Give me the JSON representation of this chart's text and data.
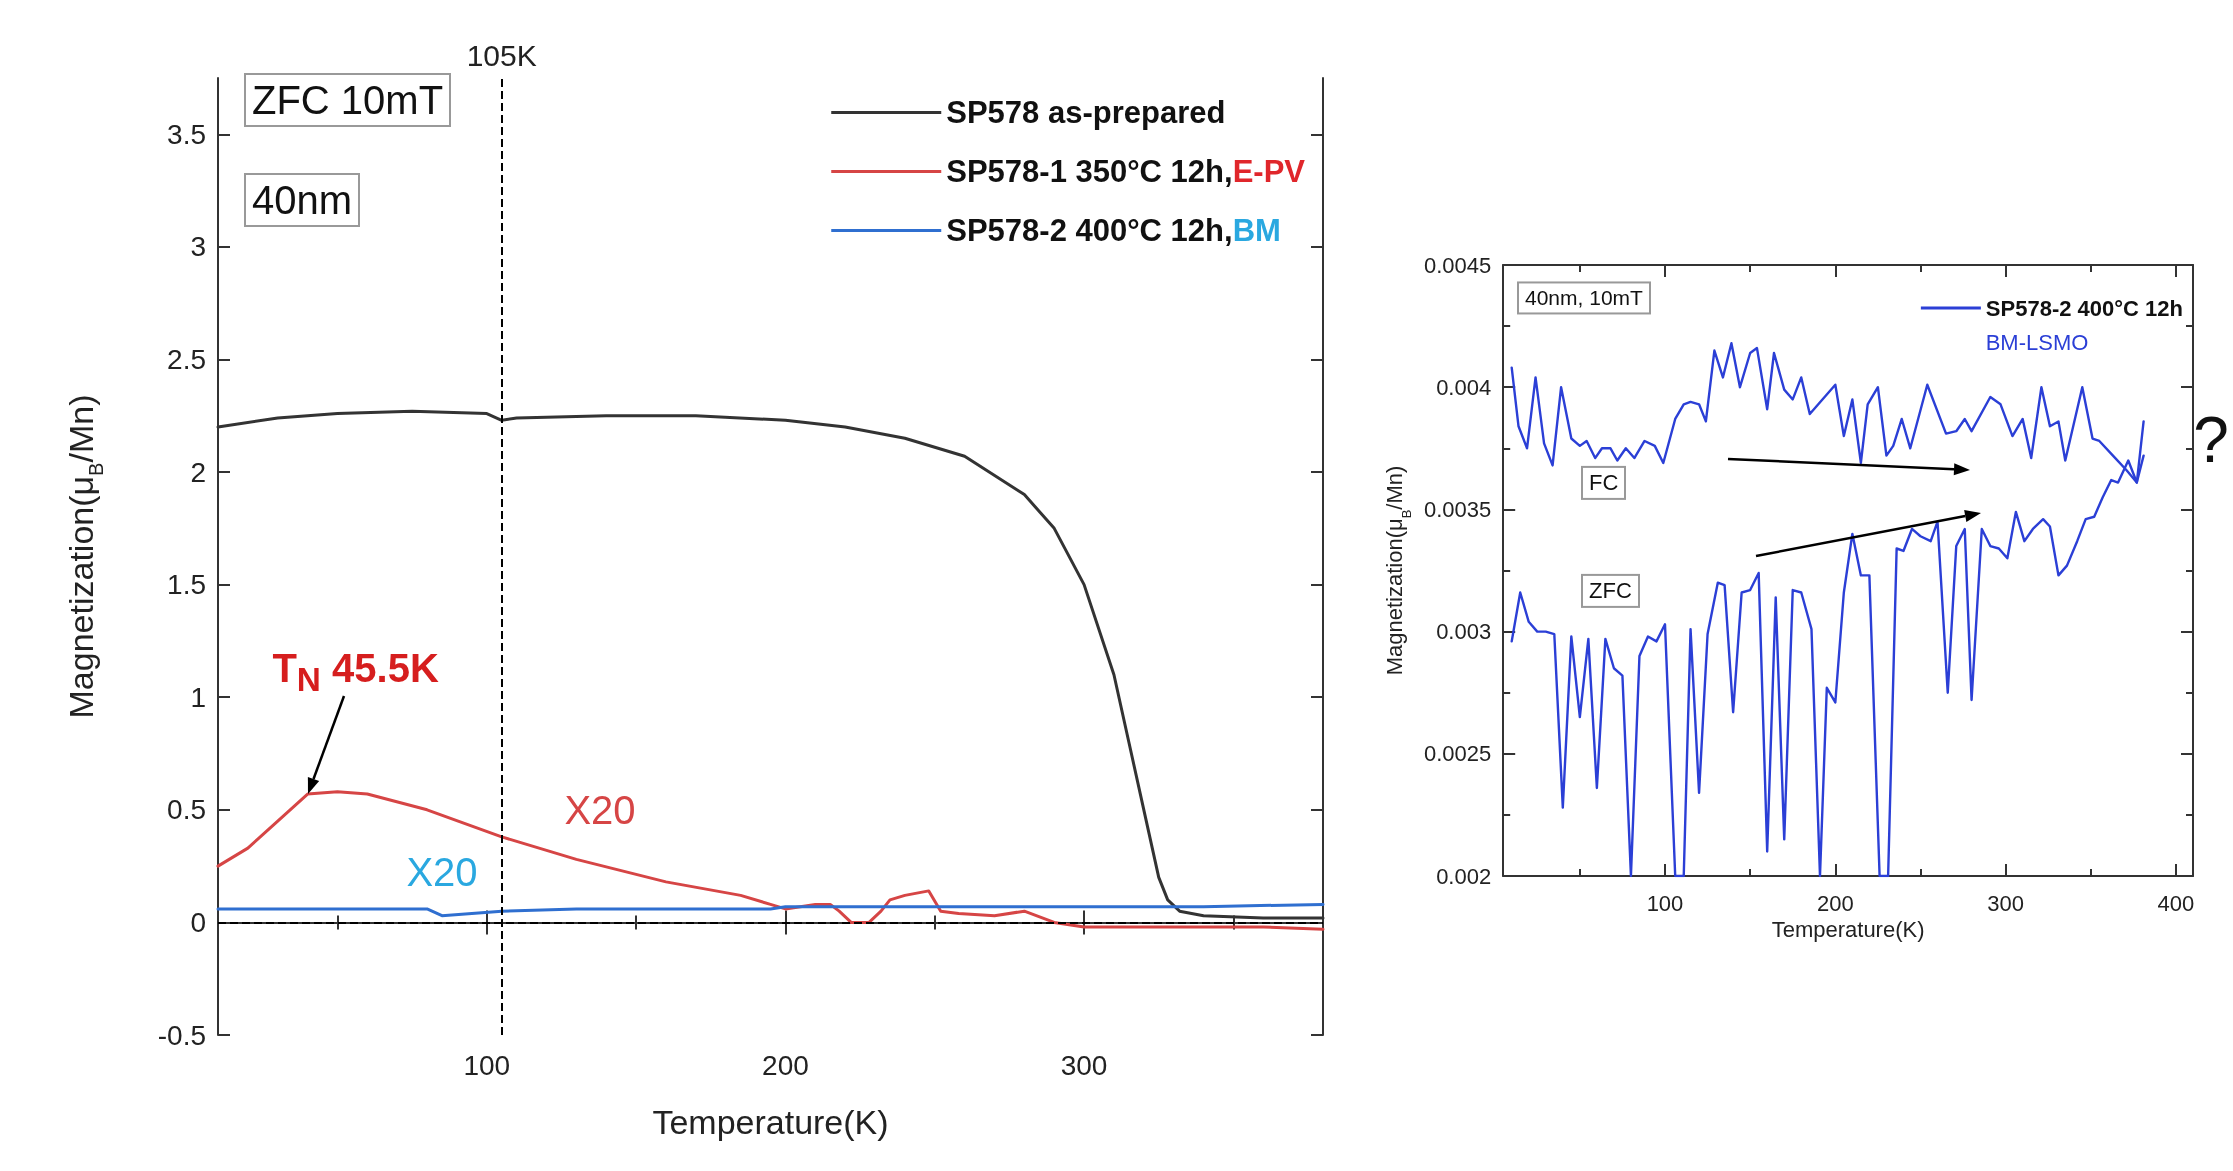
{
  "chart_data": [
    {
      "type": "line",
      "xlabel": "Temperature(K)",
      "ylabel": "Magnetization(μ$_{B}$/Mn)",
      "legend": "top right",
      "xlim": [
        10,
        380
      ],
      "xticks": [
        100,
        200,
        300
      ],
      "ylim": [
        -0.5,
        3.75
      ],
      "yticks": [
        -0.5,
        0,
        0.5,
        1,
        1.5,
        2,
        2.5,
        3,
        3.5
      ],
      "series": [
        {
          "name": "SP578 as-prepared",
          "color": "#333333",
          "x": [
            10,
            30,
            50,
            75,
            100,
            105,
            110,
            140,
            170,
            200,
            220,
            240,
            260,
            280,
            290,
            300,
            310,
            315,
            320,
            325,
            328,
            332,
            340,
            360,
            380
          ],
          "values": [
            2.2,
            2.24,
            2.26,
            2.27,
            2.26,
            2.23,
            2.24,
            2.25,
            2.25,
            2.23,
            2.2,
            2.15,
            2.07,
            1.9,
            1.75,
            1.5,
            1.1,
            0.8,
            0.5,
            0.2,
            0.1,
            0.05,
            0.03,
            0.02,
            0.02
          ]
        },
        {
          "name": "SP578-1 350°C 12h,E-PV",
          "color": "#d64545",
          "x": [
            10,
            20,
            30,
            40,
            50,
            60,
            80,
            105,
            130,
            160,
            185,
            195,
            200,
            210,
            215,
            218,
            222,
            228,
            232,
            235,
            240,
            248,
            252,
            258,
            270,
            280,
            290,
            300,
            330,
            360,
            380
          ],
          "values": [
            0.25,
            0.33,
            0.45,
            0.57,
            0.58,
            0.57,
            0.5,
            0.38,
            0.28,
            0.18,
            0.12,
            0.08,
            0.06,
            0.08,
            0.08,
            0.05,
            0,
            0,
            0.05,
            0.1,
            0.12,
            0.14,
            0.05,
            0.04,
            0.03,
            0.05,
            0,
            -0.02,
            -0.02,
            -0.02,
            -0.03
          ]
        },
        {
          "name": "SP578-2 400°C 12h,BM",
          "color": "#2f6fd0",
          "x": [
            10,
            40,
            80,
            85,
            105,
            130,
            160,
            195,
            200,
            230,
            260,
            300,
            340,
            380
          ],
          "values": [
            0.06,
            0.06,
            0.06,
            0.03,
            0.05,
            0.06,
            0.06,
            0.06,
            0.07,
            0.07,
            0.07,
            0.07,
            0.07,
            0.08
          ]
        }
      ],
      "ref_lines": [
        {
          "axis": "x",
          "value": 105,
          "label": "105K",
          "color": "#000000",
          "line_style": "dashed"
        },
        {
          "axis": "y",
          "value": 0,
          "label": null,
          "color": "#000000",
          "line_style": "dashed"
        }
      ],
      "annotations": [
        "ZFC 10mT",
        "40nm",
        {
          "text": "T$_{N}$ 45.5K",
          "x": 40,
          "y": 0.57
        },
        "X20",
        "X20"
      ]
    },
    {
      "type": "line",
      "xlabel": "Temperature(K)",
      "ylabel": "Magnetization(μ$_{B}$/Mn)",
      "legend": "top right",
      "xlim": [
        5,
        410
      ],
      "xticks": [
        100,
        200,
        300,
        400
      ],
      "ylim": [
        0.002,
        0.0045
      ],
      "yticks": [
        0.002,
        0.0025,
        0.003,
        0.0035,
        0.004,
        0.0045
      ],
      "series": [
        {
          "name": "SP578-2 400°C 12h",
          "color": "#2b3fd6",
          "x": [
            10,
            14,
            19,
            24,
            29,
            34,
            39,
            45,
            50,
            54,
            59,
            63,
            68,
            72,
            77,
            82,
            88,
            94,
            99,
            106,
            111,
            115,
            120,
            124,
            129,
            134,
            139,
            144,
            150,
            154,
            160,
            164,
            170,
            175,
            180,
            185,
            200,
            205,
            210,
            215,
            219,
            225,
            230,
            234,
            239,
            244,
            254,
            265,
            271,
            276,
            280,
            291,
            297,
            304,
            310,
            315,
            321,
            326,
            331,
            335,
            345,
            351,
            355,
            363,
            371,
            377,
            381
          ],
          "values": [
            0.00408,
            0.00384,
            0.00375,
            0.00404,
            0.00377,
            0.00368,
            0.004,
            0.00379,
            0.00376,
            0.00378,
            0.00371,
            0.00375,
            0.00375,
            0.0037,
            0.00375,
            0.00371,
            0.00378,
            0.00376,
            0.00369,
            0.00387,
            0.00393,
            0.00394,
            0.00393,
            0.00386,
            0.00415,
            0.00404,
            0.00418,
            0.004,
            0.00414,
            0.00416,
            0.00391,
            0.00414,
            0.00399,
            0.00395,
            0.00404,
            0.00389,
            0.00401,
            0.0038,
            0.00395,
            0.00369,
            0.00393,
            0.004,
            0.00372,
            0.00376,
            0.00387,
            0.00375,
            0.00401,
            0.00381,
            0.00382,
            0.00387,
            0.00382,
            0.00396,
            0.00393,
            0.0038,
            0.00387,
            0.00371,
            0.004,
            0.00384,
            0.00386,
            0.0037,
            0.004,
            0.00379,
            0.00378,
            0.00372,
            0.00366,
            0.00361,
            0.00386
          ]
        },
        {
          "color": "#2b3fd6",
          "x": [
            10,
            15,
            20,
            25,
            30,
            35,
            40,
            45,
            50,
            55,
            60,
            65,
            70,
            75,
            80,
            85,
            90,
            95,
            100,
            106,
            111,
            115,
            120,
            125,
            131,
            135,
            140,
            145,
            150,
            155,
            160,
            165,
            170,
            175,
            180,
            186,
            191,
            195,
            200,
            205,
            210,
            215,
            220,
            226,
            231,
            236,
            240,
            245,
            250,
            256,
            260,
            266,
            271,
            276,
            280,
            286,
            291,
            296,
            301,
            306,
            311,
            316,
            322,
            326,
            331,
            336,
            342,
            347,
            352,
            357,
            362,
            366,
            372,
            377,
            381
          ],
          "values": [
            0.00296,
            0.00316,
            0.00304,
            0.003,
            0.003,
            0.00299,
            0.00228,
            0.00298,
            0.00265,
            0.00297,
            0.00236,
            0.00297,
            0.00285,
            0.00282,
            0.002,
            0.0029,
            0.00298,
            0.00296,
            0.00303,
            0.002,
            0.002,
            0.00301,
            0.00234,
            0.00299,
            0.0032,
            0.00319,
            0.00267,
            0.00316,
            0.00317,
            0.00324,
            0.0021,
            0.00314,
            0.00215,
            0.00317,
            0.00316,
            0.00301,
            0.002,
            0.00277,
            0.00271,
            0.00316,
            0.0034,
            0.00323,
            0.00323,
            0.002,
            0.002,
            0.00334,
            0.00333,
            0.00342,
            0.00339,
            0.00337,
            0.00345,
            0.00275,
            0.00335,
            0.00342,
            0.00272,
            0.00342,
            0.00335,
            0.00334,
            0.0033,
            0.00349,
            0.00337,
            0.00342,
            0.00346,
            0.00343,
            0.00323,
            0.00327,
            0.00337,
            0.00346,
            0.00347,
            0.00355,
            0.00362,
            0.00361,
            0.0037,
            0.00361,
            0.00372
          ]
        }
      ],
      "annotations": [
        "40nm, 10mT",
        "BM-LSMO",
        "?",
        "FC",
        "ZFC"
      ]
    }
  ]
}
